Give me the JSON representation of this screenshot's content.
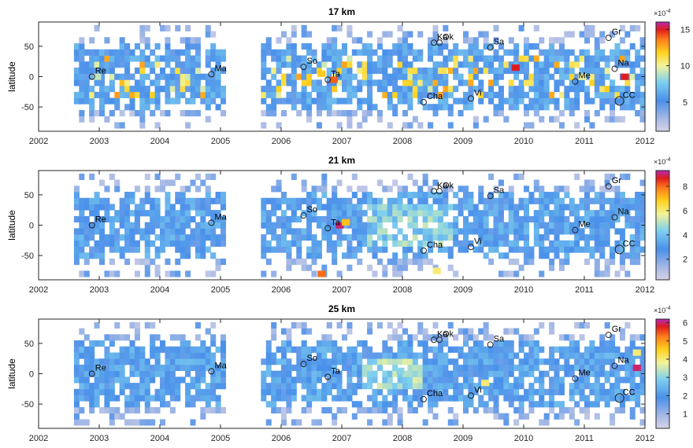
{
  "figure": {
    "panels": [
      {
        "title": "17 km",
        "colorbar": {
          "exponent_label": "×10",
          "exponent_power": "-4",
          "ticks": [
            "5",
            "10",
            "15"
          ],
          "vmin": 1,
          "vmax": 16
        }
      },
      {
        "title": "21 km",
        "colorbar": {
          "exponent_label": "×10",
          "exponent_power": "-4",
          "ticks": [
            "2",
            "4",
            "6",
            "8"
          ],
          "vmin": 0.3,
          "vmax": 9.3
        }
      },
      {
        "title": "25 km",
        "colorbar": {
          "exponent_label": "×10",
          "exponent_power": "-4",
          "ticks": [
            "1",
            "2",
            "3",
            "4",
            "5",
            "6"
          ],
          "vmin": 0.2,
          "vmax": 6.2
        }
      }
    ],
    "ylabel": "latitude",
    "xticks": [
      "2002",
      "2003",
      "2004",
      "2005",
      "2006",
      "2007",
      "2008",
      "2009",
      "2010",
      "2011",
      "2012"
    ],
    "yticks": [
      "50",
      "0",
      "-50"
    ]
  },
  "colors": {
    "frame": "#262626",
    "background": "#ffffff"
  },
  "chart_data": [
    {
      "type": "heatmap",
      "title": "17 km",
      "xlabel": "",
      "ylabel": "latitude",
      "xlim": [
        2002,
        2012
      ],
      "ylim": [
        -90,
        90
      ],
      "colorbar_exponent": "×10^-4",
      "colorbar_range": [
        1,
        16
      ],
      "colormap": "parula-like (lavender → blue → cyan → yellow → orange → red → magenta)",
      "coverage": "monthly 5-degree bins, mid-2002 to end-2011, no data early 2005 to late 2005",
      "hotspots": [
        {
          "x": 2002.9,
          "y": 0,
          "value": 9
        },
        {
          "x": 2006.6,
          "y": 5,
          "value": 12
        },
        {
          "x": 2006.8,
          "y": -5,
          "value": 14
        },
        {
          "x": 2008.6,
          "y": 10,
          "value": 11
        },
        {
          "x": 2009.8,
          "y": 15,
          "value": 15
        },
        {
          "x": 2010.9,
          "y": 0,
          "value": 10
        },
        {
          "x": 2011.6,
          "y": 0,
          "value": 15
        }
      ],
      "annotations": [
        {
          "label": "Re",
          "x": 2002.88,
          "y": 0
        },
        {
          "label": "Ma",
          "x": 2004.85,
          "y": 4
        },
        {
          "label": "So",
          "x": 2006.37,
          "y": 16
        },
        {
          "label": "Ta",
          "x": 2006.77,
          "y": -5
        },
        {
          "label": "Ka",
          "x": 2008.52,
          "y": 56
        },
        {
          "label": "Ok",
          "x": 2008.61,
          "y": 56
        },
        {
          "label": "Cha",
          "x": 2008.35,
          "y": -42
        },
        {
          "label": "Vi",
          "x": 2009.13,
          "y": -36
        },
        {
          "label": "Sa",
          "x": 2009.45,
          "y": 48
        },
        {
          "label": "Me",
          "x": 2010.85,
          "y": -8
        },
        {
          "label": "Gr",
          "x": 2011.4,
          "y": 64
        },
        {
          "label": "Na",
          "x": 2011.5,
          "y": 13
        },
        {
          "label": "CC",
          "x": 2011.58,
          "y": -40
        }
      ]
    },
    {
      "type": "heatmap",
      "title": "21 km",
      "xlabel": "",
      "ylabel": "latitude",
      "xlim": [
        2002,
        2012
      ],
      "ylim": [
        -90,
        90
      ],
      "colorbar_exponent": "×10^-4",
      "colorbar_range": [
        0.3,
        9.3
      ],
      "hotspots": [
        {
          "x": 2006.9,
          "y": 0,
          "value": 9
        },
        {
          "x": 2007.0,
          "y": 5,
          "value": 7
        },
        {
          "x": 2006.6,
          "y": -80,
          "value": 8
        },
        {
          "x": 2008.5,
          "y": -75,
          "value": 6
        }
      ],
      "annotations": [
        {
          "label": "Re",
          "x": 2002.88,
          "y": 0
        },
        {
          "label": "Ma",
          "x": 2004.85,
          "y": 4
        },
        {
          "label": "So",
          "x": 2006.37,
          "y": 16
        },
        {
          "label": "Ta",
          "x": 2006.77,
          "y": -5
        },
        {
          "label": "Ka",
          "x": 2008.52,
          "y": 56
        },
        {
          "label": "Ok",
          "x": 2008.61,
          "y": 56
        },
        {
          "label": "Cha",
          "x": 2008.35,
          "y": -42
        },
        {
          "label": "Vi",
          "x": 2009.13,
          "y": -36
        },
        {
          "label": "Sa",
          "x": 2009.45,
          "y": 48
        },
        {
          "label": "Me",
          "x": 2010.85,
          "y": -8
        },
        {
          "label": "Gr",
          "x": 2011.4,
          "y": 64
        },
        {
          "label": "Na",
          "x": 2011.5,
          "y": 13
        },
        {
          "label": "CC",
          "x": 2011.58,
          "y": -40
        }
      ]
    },
    {
      "type": "heatmap",
      "title": "25 km",
      "xlabel": "",
      "ylabel": "latitude",
      "xlim": [
        2002,
        2012
      ],
      "ylim": [
        -90,
        90
      ],
      "colorbar_exponent": "×10^-4",
      "colorbar_range": [
        0.2,
        6.2
      ],
      "hotspots": [
        {
          "x": 2011.8,
          "y": 35,
          "value": 4
        },
        {
          "x": 2011.8,
          "y": 10,
          "value": 6
        },
        {
          "x": 2009.3,
          "y": -15,
          "value": 4
        },
        {
          "x": 2007.9,
          "y": 5,
          "value": 3
        }
      ],
      "annotations": [
        {
          "label": "Re",
          "x": 2002.88,
          "y": 0
        },
        {
          "label": "Ma",
          "x": 2004.85,
          "y": 4
        },
        {
          "label": "So",
          "x": 2006.37,
          "y": 16
        },
        {
          "label": "Ta",
          "x": 2006.77,
          "y": -5
        },
        {
          "label": "Ka",
          "x": 2008.52,
          "y": 56
        },
        {
          "label": "Ok",
          "x": 2008.61,
          "y": 56
        },
        {
          "label": "Cha",
          "x": 2008.35,
          "y": -42
        },
        {
          "label": "Vi",
          "x": 2009.13,
          "y": -36
        },
        {
          "label": "Sa",
          "x": 2009.45,
          "y": 48
        },
        {
          "label": "Me",
          "x": 2010.85,
          "y": -8
        },
        {
          "label": "Gr",
          "x": 2011.4,
          "y": 64
        },
        {
          "label": "Na",
          "x": 2011.5,
          "y": 13
        },
        {
          "label": "CC",
          "x": 2011.58,
          "y": -40
        }
      ]
    }
  ]
}
